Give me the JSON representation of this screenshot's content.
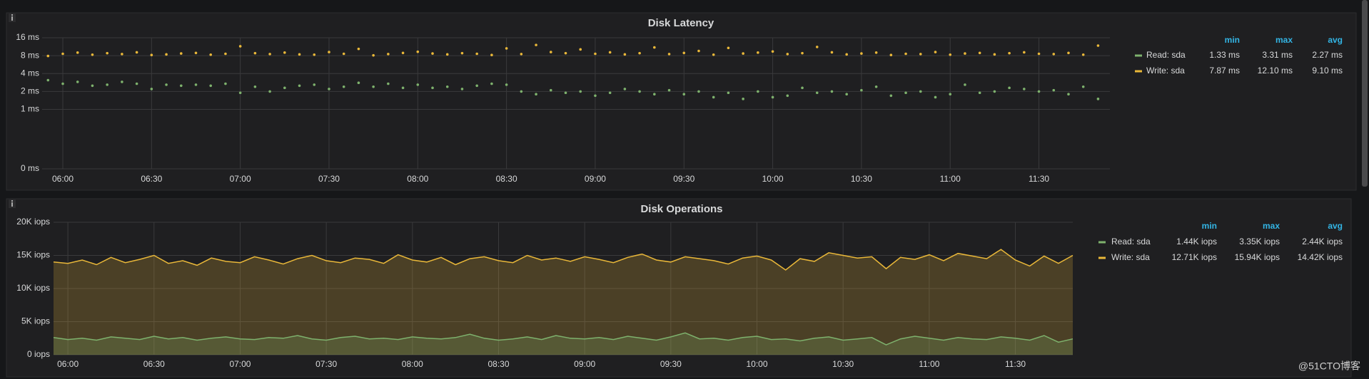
{
  "chart_data": [
    {
      "type": "scatter",
      "title": "Disk Latency",
      "yscale": "log2",
      "grid": true,
      "x": [
        "05:55",
        "06:00",
        "06:05",
        "06:10",
        "06:15",
        "06:20",
        "06:25",
        "06:30",
        "06:35",
        "06:40",
        "06:45",
        "06:50",
        "06:55",
        "07:00",
        "07:05",
        "07:10",
        "07:15",
        "07:20",
        "07:25",
        "07:30",
        "07:35",
        "07:40",
        "07:45",
        "07:50",
        "07:55",
        "08:00",
        "08:05",
        "08:10",
        "08:15",
        "08:20",
        "08:25",
        "08:30",
        "08:35",
        "08:40",
        "08:45",
        "08:50",
        "08:55",
        "09:00",
        "09:05",
        "09:10",
        "09:15",
        "09:20",
        "09:25",
        "09:30",
        "09:35",
        "09:40",
        "09:45",
        "09:50",
        "09:55",
        "10:00",
        "10:05",
        "10:10",
        "10:15",
        "10:20",
        "10:25",
        "10:30",
        "10:35",
        "10:40",
        "10:45",
        "10:50",
        "10:55",
        "11:00",
        "11:05",
        "11:10",
        "11:15",
        "11:20",
        "11:25",
        "11:30",
        "11:35",
        "11:40",
        "11:45",
        "11:50"
      ],
      "xlim": [
        "05:53",
        "11:54"
      ],
      "xticks": [
        "06:00",
        "06:30",
        "07:00",
        "07:30",
        "08:00",
        "08:30",
        "09:00",
        "09:30",
        "10:00",
        "10:30",
        "11:00",
        "11:30"
      ],
      "ylim": [
        0.1,
        16
      ],
      "yticks": [
        {
          "value": 0.1,
          "label": "0 ms"
        },
        {
          "value": 1,
          "label": "1 ms"
        },
        {
          "value": 2,
          "label": "2 ms"
        },
        {
          "value": 4,
          "label": "4 ms"
        },
        {
          "value": 8,
          "label": "8 ms"
        },
        {
          "value": 16,
          "label": "16 ms"
        }
      ],
      "legend": {
        "columns": [
          "min",
          "max",
          "avg"
        ]
      },
      "series": [
        {
          "name": "Read: sda",
          "color": "#7eb26d",
          "stats": [
            "1.33 ms",
            "3.31 ms",
            "2.27 ms"
          ],
          "values": [
            3.1,
            2.7,
            2.9,
            2.5,
            2.6,
            2.9,
            2.7,
            2.2,
            2.6,
            2.5,
            2.6,
            2.5,
            2.7,
            1.9,
            2.4,
            2.0,
            2.3,
            2.5,
            2.6,
            2.2,
            2.4,
            2.8,
            2.4,
            2.7,
            2.3,
            2.6,
            2.3,
            2.4,
            2.2,
            2.5,
            2.7,
            2.6,
            2.0,
            1.8,
            2.1,
            1.9,
            2.0,
            1.7,
            1.9,
            2.2,
            2.0,
            1.8,
            2.1,
            1.8,
            2.0,
            1.6,
            1.9,
            1.5,
            2.0,
            1.6,
            1.7,
            2.3,
            1.9,
            2.0,
            1.8,
            2.1,
            2.4,
            1.7,
            1.9,
            2.0,
            1.6,
            1.8,
            2.6,
            1.9,
            2.0,
            2.3,
            2.2,
            2.0,
            2.1,
            1.8,
            2.4,
            1.5
          ]
        },
        {
          "name": "Write: sda",
          "color": "#eab839",
          "stats": [
            "7.87 ms",
            "12.10 ms",
            "9.10 ms"
          ],
          "values": [
            7.9,
            8.6,
            9.0,
            8.3,
            8.8,
            8.5,
            9.1,
            8.2,
            8.4,
            8.7,
            8.9,
            8.3,
            8.6,
            11.5,
            8.8,
            8.5,
            9.0,
            8.4,
            8.3,
            9.2,
            8.6,
            10.4,
            8.1,
            8.5,
            8.9,
            9.3,
            8.7,
            8.4,
            8.8,
            8.6,
            8.2,
            10.6,
            8.5,
            12.1,
            9.2,
            8.8,
            10.2,
            8.6,
            9.1,
            8.4,
            8.8,
            11.0,
            8.5,
            8.9,
            9.6,
            8.3,
            10.8,
            8.7,
            9.0,
            9.4,
            8.5,
            8.8,
            11.2,
            9.1,
            8.4,
            8.7,
            9.0,
            8.2,
            8.6,
            8.5,
            9.2,
            8.3,
            8.7,
            8.9,
            8.4,
            8.8,
            9.1,
            8.6,
            8.5,
            8.9,
            8.3,
            11.8
          ]
        }
      ]
    },
    {
      "type": "area",
      "title": "Disk Operations",
      "grid": true,
      "x": [
        "05:55",
        "06:00",
        "06:05",
        "06:10",
        "06:15",
        "06:20",
        "06:25",
        "06:30",
        "06:35",
        "06:40",
        "06:45",
        "06:50",
        "06:55",
        "07:00",
        "07:05",
        "07:10",
        "07:15",
        "07:20",
        "07:25",
        "07:30",
        "07:35",
        "07:40",
        "07:45",
        "07:50",
        "07:55",
        "08:00",
        "08:05",
        "08:10",
        "08:15",
        "08:20",
        "08:25",
        "08:30",
        "08:35",
        "08:40",
        "08:45",
        "08:50",
        "08:55",
        "09:00",
        "09:05",
        "09:10",
        "09:15",
        "09:20",
        "09:25",
        "09:30",
        "09:35",
        "09:40",
        "09:45",
        "09:50",
        "09:55",
        "10:00",
        "10:05",
        "10:10",
        "10:15",
        "10:20",
        "10:25",
        "10:30",
        "10:35",
        "10:40",
        "10:45",
        "10:50",
        "10:55",
        "11:00",
        "11:05",
        "11:10",
        "11:15",
        "11:20",
        "11:25",
        "11:30",
        "11:35",
        "11:40",
        "11:45",
        "11:50"
      ],
      "xlim": [
        "05:55",
        "11:50"
      ],
      "xticks": [
        "06:00",
        "06:30",
        "07:00",
        "07:30",
        "08:00",
        "08:30",
        "09:00",
        "09:30",
        "10:00",
        "10:30",
        "11:00",
        "11:30"
      ],
      "ylim": [
        0,
        20000
      ],
      "yticks": [
        {
          "value": 0,
          "label": "0 iops"
        },
        {
          "value": 5000,
          "label": "5K iops"
        },
        {
          "value": 10000,
          "label": "10K iops"
        },
        {
          "value": 15000,
          "label": "15K iops"
        },
        {
          "value": 20000,
          "label": "20K iops"
        }
      ],
      "legend": {
        "columns": [
          "min",
          "max",
          "avg"
        ]
      },
      "series": [
        {
          "name": "Read: sda",
          "color": "#7eb26d",
          "stats": [
            "1.44K iops",
            "3.35K iops",
            "2.44K iops"
          ],
          "values": [
            2600,
            2300,
            2500,
            2200,
            2700,
            2500,
            2300,
            2800,
            2400,
            2600,
            2200,
            2500,
            2700,
            2400,
            2300,
            2600,
            2500,
            2900,
            2400,
            2200,
            2600,
            2800,
            2400,
            2500,
            2300,
            2700,
            2500,
            2400,
            2600,
            3100,
            2500,
            2200,
            2400,
            2700,
            2300,
            2900,
            2500,
            2400,
            2600,
            2300,
            2800,
            2500,
            2200,
            2700,
            3300,
            2400,
            2500,
            2200,
            2600,
            2800,
            2300,
            2400,
            2100,
            2500,
            2700,
            2200,
            2400,
            2600,
            1500,
            2400,
            2800,
            2500,
            2200,
            2600,
            2400,
            2300,
            2700,
            2500,
            2200,
            2900,
            1900,
            2400
          ]
        },
        {
          "name": "Write: sda",
          "color": "#eab839",
          "stats": [
            "12.71K iops",
            "15.94K iops",
            "14.42K iops"
          ],
          "values": [
            14000,
            13800,
            14300,
            13600,
            14700,
            13900,
            14400,
            15000,
            13800,
            14200,
            13500,
            14600,
            14100,
            13900,
            14800,
            14300,
            13700,
            14500,
            15000,
            14200,
            13900,
            14600,
            14400,
            13800,
            15100,
            14300,
            14000,
            14700,
            13600,
            14500,
            14800,
            14200,
            13900,
            15000,
            14300,
            14600,
            14100,
            14800,
            14400,
            13900,
            14700,
            15200,
            14300,
            14000,
            14800,
            14500,
            14200,
            13700,
            14600,
            14900,
            14300,
            12800,
            14500,
            14100,
            15400,
            15000,
            14600,
            14800,
            13000,
            14700,
            14400,
            15100,
            14200,
            15300,
            14900,
            14500,
            15900,
            14300,
            13400,
            14900,
            13800,
            15000
          ]
        }
      ]
    }
  ],
  "watermark": "@51CTO博客"
}
